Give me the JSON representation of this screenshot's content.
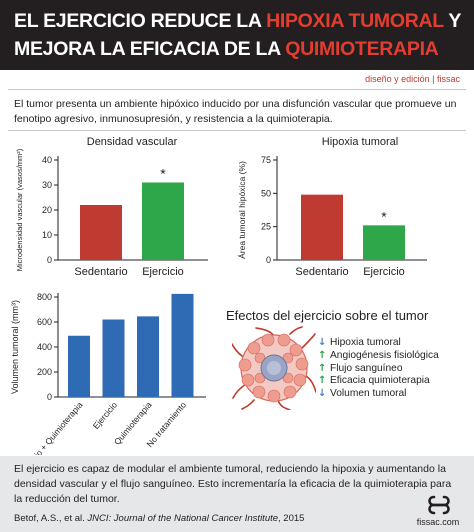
{
  "header": {
    "line1_a": "EL EJERCICIO REDUCE LA ",
    "line1_hl": "HIPOXIA TUMORAL",
    "line1_b": " Y",
    "line2_a": "MEJORA LA EFICACIA DE LA ",
    "line2_hl": "QUIMIOTERAPIA"
  },
  "credit": {
    "label": "diseño y edición",
    "separator": "|",
    "brand": "fissac"
  },
  "intro": "El tumor presenta un ambiente hipóxico inducido por una disfunción vascular que promueve un fenotipo agresivo, inmunosupresión, y resistencia a la quimioterapia.",
  "colors": {
    "red": "#bf3a30",
    "green": "#2ea64a",
    "blue": "#2f6bb5",
    "header_bg": "#231f20",
    "highlight": "#e33d2f"
  },
  "chart_data": [
    {
      "type": "bar",
      "title": "Densidad vascular",
      "ylabel": "Microdensidad vascular (vasos/mm²)",
      "ylim": [
        0,
        40
      ],
      "yticks": [
        "0",
        "10",
        "20",
        "30",
        "40"
      ],
      "categories": [
        "Sedentario",
        "Ejercicio"
      ],
      "values": [
        22,
        31
      ],
      "bar_colors": [
        "#bf3a30",
        "#2ea64a"
      ],
      "annotations": [
        "",
        "*"
      ]
    },
    {
      "type": "bar",
      "title": "Hipoxia tumoral",
      "ylabel": "Área tumoral hipóxica (%)",
      "ylim": [
        0,
        75
      ],
      "yticks": [
        "0",
        "25",
        "50",
        "75"
      ],
      "categories": [
        "Sedentario",
        "Ejercicio"
      ],
      "values": [
        49,
        26
      ],
      "bar_colors": [
        "#bf3a30",
        "#2ea64a"
      ],
      "annotations": [
        "",
        "*"
      ]
    },
    {
      "type": "bar",
      "title": "",
      "ylabel": "Volumen tumoral (mm³)",
      "ylim": [
        0,
        800
      ],
      "yticks": [
        "0",
        "200",
        "400",
        "600",
        "800"
      ],
      "categories": [
        "Ejercicio + Quimioterapia",
        "Ejercicio",
        "Quimioterapia",
        "No tratamiento"
      ],
      "values": [
        490,
        620,
        645,
        825
      ],
      "bar_colors": [
        "#2f6bb5",
        "#2f6bb5",
        "#2f6bb5",
        "#2f6bb5"
      ]
    }
  ],
  "effects": {
    "title": "Efectos del ejercicio sobre el tumor",
    "items": [
      {
        "direction": "down",
        "icon": "arrow-down-icon",
        "label": "Hipoxia tumoral"
      },
      {
        "direction": "up",
        "icon": "arrow-up-icon",
        "label": "Angiogénesis fisiológica"
      },
      {
        "direction": "up",
        "icon": "arrow-up-icon",
        "label": "Flujo sanguíneo"
      },
      {
        "direction": "up",
        "icon": "arrow-up-icon",
        "label": "Eficacia quimioterapia"
      },
      {
        "direction": "down",
        "icon": "arrow-down-icon",
        "label": "Volumen tumoral"
      }
    ]
  },
  "summary": "El ejercicio es capaz de modular el ambiente tumoral, reduciendo la hipoxia y aumentando la densidad vascular y el flujo sanguíneo. Esto incrementaría la eficacia de la quimioterapia para la reducción del tumor.",
  "citation": {
    "authors": "Betof, A.S., et al.",
    "journal": "JNCI: Journal of the National Cancer Institute",
    "year": ", 2015"
  },
  "brand": {
    "name": "fissac.com",
    "icon": "fissac-logo-icon"
  }
}
